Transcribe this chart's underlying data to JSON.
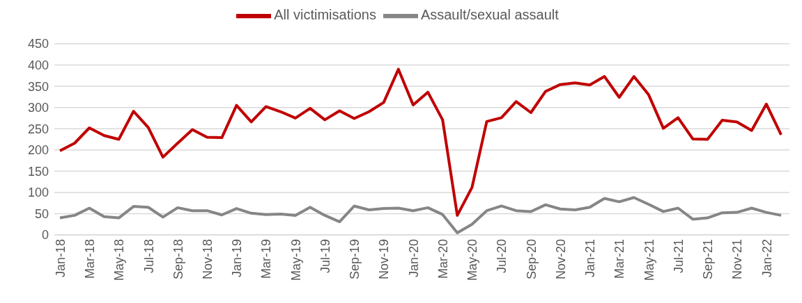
{
  "chart_data": {
    "type": "line",
    "categories": [
      "Jan-18",
      null,
      "Mar-18",
      null,
      "May-18",
      null,
      "Jul-18",
      null,
      "Sep-18",
      null,
      "Nov-18",
      null,
      "Jan-19",
      null,
      "Mar-19",
      null,
      "May-19",
      null,
      "Jul-19",
      null,
      "Sep-19",
      null,
      "Nov-19",
      null,
      "Jan-20",
      null,
      "Mar-20",
      null,
      "May-20",
      null,
      "Jul-20",
      null,
      "Sep-20",
      null,
      "Nov-20",
      null,
      "Jan-21",
      null,
      "Mar-21",
      null,
      "May-21",
      null,
      "Jul-21",
      null,
      "Sep-21",
      null,
      "Nov-21",
      null,
      "Jan-22",
      null
    ],
    "series": [
      {
        "name": "All victimisations",
        "color": "#c00000",
        "values": [
          198,
          216,
          252,
          234,
          225,
          291,
          253,
          183,
          216,
          248,
          230,
          229,
          305,
          266,
          302,
          290,
          275,
          298,
          271,
          292,
          274,
          290,
          312,
          390,
          306,
          336,
          271,
          46,
          112,
          267,
          276,
          314,
          288,
          338,
          354,
          358,
          353,
          373,
          324,
          373,
          330,
          251,
          276,
          226,
          225,
          270,
          266,
          246,
          308,
          236
        ]
      },
      {
        "name": "Assault/sexual assault",
        "color": "#868686",
        "values": [
          40,
          46,
          63,
          43,
          40,
          67,
          65,
          42,
          64,
          57,
          57,
          47,
          62,
          51,
          48,
          49,
          46,
          65,
          46,
          31,
          68,
          59,
          62,
          63,
          57,
          64,
          48,
          5,
          25,
          57,
          68,
          57,
          55,
          71,
          61,
          59,
          65,
          86,
          78,
          88,
          72,
          55,
          63,
          37,
          40,
          52,
          53,
          63,
          53,
          46
        ]
      }
    ],
    "ylim": [
      0,
      450
    ],
    "yticks": [
      0,
      50,
      100,
      150,
      200,
      250,
      300,
      350,
      400,
      450
    ],
    "grid": "y",
    "legend": "top",
    "marker": "none",
    "line_style": "solid"
  }
}
